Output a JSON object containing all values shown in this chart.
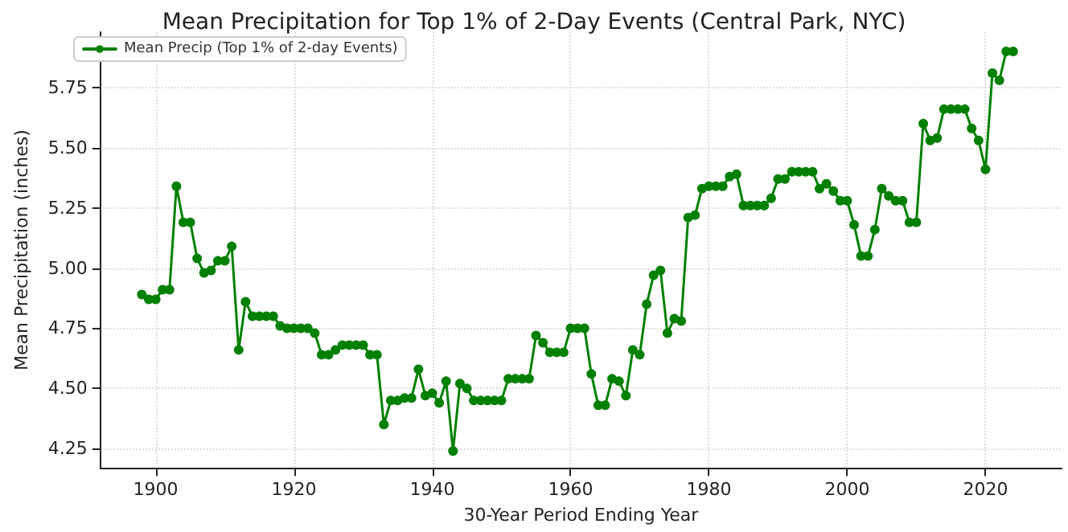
{
  "chart_data": {
    "type": "line",
    "title": "Mean Precipitation for Top 1% of 2-Day Events (Central Park, NYC)",
    "xlabel": "30-Year Period Ending Year",
    "ylabel": "Mean Precipitation (inches)",
    "x": [
      1898,
      1899,
      1900,
      1901,
      1902,
      1903,
      1904,
      1905,
      1906,
      1907,
      1908,
      1909,
      1910,
      1911,
      1912,
      1913,
      1914,
      1915,
      1916,
      1917,
      1918,
      1919,
      1920,
      1921,
      1922,
      1923,
      1924,
      1925,
      1926,
      1927,
      1928,
      1929,
      1930,
      1931,
      1932,
      1933,
      1934,
      1935,
      1936,
      1937,
      1938,
      1939,
      1940,
      1941,
      1942,
      1943,
      1944,
      1945,
      1946,
      1947,
      1948,
      1949,
      1950,
      1951,
      1952,
      1953,
      1954,
      1955,
      1956,
      1957,
      1958,
      1959,
      1960,
      1961,
      1962,
      1963,
      1964,
      1965,
      1966,
      1967,
      1968,
      1969,
      1970,
      1971,
      1972,
      1973,
      1974,
      1975,
      1976,
      1977,
      1978,
      1979,
      1980,
      1981,
      1982,
      1983,
      1984,
      1985,
      1986,
      1987,
      1988,
      1989,
      1990,
      1991,
      1992,
      1993,
      1994,
      1995,
      1996,
      1997,
      1998,
      1999,
      2000,
      2001,
      2002,
      2003,
      2004,
      2005,
      2006,
      2007,
      2008,
      2009,
      2010,
      2011,
      2012,
      2013,
      2014,
      2015,
      2016,
      2017,
      2018,
      2019,
      2020,
      2021,
      2022,
      2023,
      2024
    ],
    "series": [
      {
        "name": "Mean Precip (Top 1% of 2-day Events)",
        "color": "#008000",
        "values": [
          4.89,
          4.87,
          4.87,
          4.91,
          4.91,
          5.34,
          5.19,
          5.19,
          5.04,
          4.98,
          4.99,
          5.03,
          5.03,
          5.09,
          4.66,
          4.86,
          4.8,
          4.8,
          4.8,
          4.8,
          4.76,
          4.75,
          4.75,
          4.75,
          4.75,
          4.73,
          4.64,
          4.64,
          4.66,
          4.68,
          4.68,
          4.68,
          4.68,
          4.64,
          4.64,
          4.35,
          4.45,
          4.45,
          4.46,
          4.46,
          4.58,
          4.47,
          4.48,
          4.44,
          4.53,
          4.24,
          4.52,
          4.5,
          4.45,
          4.45,
          4.45,
          4.45,
          4.45,
          4.54,
          4.54,
          4.54,
          4.54,
          4.72,
          4.69,
          4.65,
          4.65,
          4.65,
          4.75,
          4.75,
          4.75,
          4.56,
          4.43,
          4.43,
          4.54,
          4.53,
          4.47,
          4.66,
          4.64,
          4.85,
          4.97,
          4.99,
          4.73,
          4.79,
          4.78,
          5.21,
          5.22,
          5.33,
          5.34,
          5.34,
          5.34,
          5.38,
          5.39,
          5.26,
          5.26,
          5.26,
          5.26,
          5.29,
          5.37,
          5.37,
          5.4,
          5.4,
          5.4,
          5.4,
          5.33,
          5.35,
          5.32,
          5.28,
          5.28,
          5.18,
          5.05,
          5.05,
          5.16,
          5.33,
          5.3,
          5.28,
          5.28,
          5.19,
          5.19,
          5.6,
          5.53,
          5.54,
          5.66,
          5.66,
          5.66,
          5.66,
          5.58,
          5.53,
          5.41,
          5.81,
          5.78,
          5.9,
          5.9
        ]
      }
    ],
    "xlim": [
      1892,
      2031
    ],
    "xticks": [
      1900,
      1920,
      1940,
      1960,
      1980,
      2000,
      2020
    ],
    "ylim": [
      4.17,
      5.98
    ],
    "yticks": [
      4.25,
      {
        "value": 4.5,
        "label": "4.50"
      },
      4.75,
      {
        "value": 5.0,
        "label": "5.00"
      },
      5.25,
      {
        "value": 5.5,
        "label": "5.50"
      },
      5.75
    ],
    "grid": true,
    "legend": "top left",
    "marker": "circle",
    "line_style": "solid"
  }
}
